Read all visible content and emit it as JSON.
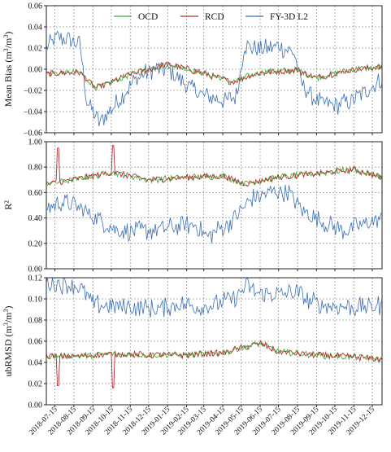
{
  "chart_data": {
    "type": "line",
    "x_ticks": [
      "2018-07-15",
      "2018-08-15",
      "2018-09-15",
      "2018-10-15",
      "2018-11-15",
      "2018-12-15",
      "2019-01-15",
      "2019-02-15",
      "2019-03-15",
      "2019-04-15",
      "2019-05-15",
      "2019-06-15",
      "2019-07-15",
      "2019-08-15",
      "2019-09-15",
      "2019-10-15",
      "2019-11-15",
      "2019-12-15"
    ],
    "xlim": [
      "2018-07-01",
      "2019-12-31"
    ],
    "legend": {
      "placement": "top-center",
      "entries": [
        "OCD",
        "RCD",
        "FY-3D L2"
      ]
    },
    "colors": {
      "OCD": "#3cb043",
      "RCD": "#b5302c",
      "FY-3D L2": "#3a6fb5"
    },
    "grid": true,
    "panels": [
      {
        "ylabel_main": "Mean Bias (m",
        "ylabel_sup": "3",
        "ylabel_mid": "/m",
        "ylabel_sup2": "3",
        "ylabel_end": ")",
        "ylim": [
          -0.06,
          0.06
        ],
        "yticks": [
          "0.06",
          "0.04",
          "0.02",
          "0.00",
          "−0.02",
          "−0.04",
          "−0.06"
        ],
        "series": [
          {
            "name": "OCD",
            "x": [
              "2018-07-01",
              "2018-08-25",
              "2018-09-20",
              "2018-11-15",
              "2019-01-15",
              "2019-03-15",
              "2019-05-01",
              "2019-06-15",
              "2019-08-15",
              "2019-09-15",
              "2019-11-15",
              "2019-12-31"
            ],
            "values": [
              -0.004,
              -0.003,
              -0.018,
              -0.005,
              0.005,
              -0.004,
              -0.012,
              -0.003,
              -0.001,
              -0.008,
              0.0,
              0.002
            ]
          },
          {
            "name": "RCD",
            "x": [
              "2018-07-01",
              "2018-08-25",
              "2018-09-20",
              "2018-11-15",
              "2019-01-15",
              "2019-03-15",
              "2019-05-01",
              "2019-06-15",
              "2019-08-15",
              "2019-09-15",
              "2019-11-15",
              "2019-12-31"
            ],
            "values": [
              -0.004,
              -0.003,
              -0.018,
              -0.005,
              0.005,
              -0.004,
              -0.012,
              -0.003,
              -0.001,
              -0.008,
              0.0,
              0.002
            ]
          },
          {
            "name": "FY-3D L2",
            "x": [
              "2018-07-01",
              "2018-07-20",
              "2018-08-25",
              "2018-09-05",
              "2018-09-25",
              "2018-10-20",
              "2018-11-20",
              "2018-12-20",
              "2019-01-15",
              "2019-02-15",
              "2019-03-15",
              "2019-04-20",
              "2019-05-08",
              "2019-05-20",
              "2019-06-15",
              "2019-07-15",
              "2019-08-10",
              "2019-08-20",
              "2019-09-15",
              "2019-10-15",
              "2019-11-15",
              "2019-12-31"
            ],
            "values": [
              0.02,
              0.03,
              0.024,
              -0.03,
              -0.05,
              -0.035,
              -0.012,
              0.0,
              0.0,
              -0.015,
              -0.025,
              -0.03,
              -0.025,
              0.022,
              0.018,
              0.022,
              0.015,
              -0.012,
              -0.03,
              -0.035,
              -0.028,
              -0.01
            ]
          }
        ]
      },
      {
        "ylabel_main": "R²",
        "ylim": [
          0.0,
          1.0
        ],
        "yticks": [
          "1.00",
          "0.80",
          "0.60",
          "0.40",
          "0.20",
          "0.00"
        ],
        "series": [
          {
            "name": "OCD",
            "x": [
              "2018-07-01",
              "2018-08-15",
              "2018-10-15",
              "2018-12-15",
              "2019-02-15",
              "2019-04-15",
              "2019-05-20",
              "2019-07-15",
              "2019-09-15",
              "2019-11-15",
              "2019-12-31"
            ],
            "values": [
              0.67,
              0.7,
              0.76,
              0.7,
              0.72,
              0.73,
              0.67,
              0.72,
              0.75,
              0.78,
              0.72
            ]
          },
          {
            "name": "RCD",
            "x": [
              "2018-07-01",
              "2018-08-15",
              "2018-10-15",
              "2018-12-15",
              "2019-02-15",
              "2019-04-15",
              "2019-05-20",
              "2019-07-15",
              "2019-09-15",
              "2019-11-15",
              "2019-12-31"
            ],
            "values": [
              0.67,
              0.7,
              0.76,
              0.7,
              0.72,
              0.73,
              0.67,
              0.72,
              0.75,
              0.78,
              0.72
            ]
          },
          {
            "name": "FY-3D L2",
            "x": [
              "2018-07-01",
              "2018-08-01",
              "2018-09-15",
              "2018-10-25",
              "2018-12-15",
              "2019-01-15",
              "2019-03-01",
              "2019-03-20",
              "2019-05-01",
              "2019-06-01",
              "2019-07-10",
              "2019-08-01",
              "2019-08-25",
              "2019-10-01",
              "2019-11-01",
              "2019-12-31"
            ],
            "values": [
              0.48,
              0.53,
              0.42,
              0.3,
              0.3,
              0.32,
              0.35,
              0.25,
              0.38,
              0.55,
              0.62,
              0.6,
              0.45,
              0.35,
              0.3,
              0.4
            ]
          }
        ]
      },
      {
        "ylabel_main": "ubRMSD (m",
        "ylabel_sup": "3",
        "ylabel_mid": "/m",
        "ylabel_sup2": "3",
        "ylabel_end": ")",
        "ylim": [
          0.0,
          0.12
        ],
        "yticks": [
          "0.12",
          "0.10",
          "0.08",
          "0.06",
          "0.04",
          "0.02",
          "0.00"
        ],
        "series": [
          {
            "name": "OCD",
            "x": [
              "2018-07-01",
              "2018-08-25",
              "2018-10-15",
              "2018-12-15",
              "2019-02-15",
              "2019-04-15",
              "2019-05-25",
              "2019-06-15",
              "2019-07-15",
              "2019-09-15",
              "2019-11-15",
              "2019-12-31"
            ],
            "values": [
              0.046,
              0.046,
              0.048,
              0.047,
              0.047,
              0.049,
              0.055,
              0.058,
              0.05,
              0.047,
              0.045,
              0.043
            ]
          },
          {
            "name": "RCD",
            "x": [
              "2018-07-01",
              "2018-08-25",
              "2018-10-15",
              "2018-12-15",
              "2019-02-15",
              "2019-04-15",
              "2019-05-25",
              "2019-06-15",
              "2019-07-15",
              "2019-09-15",
              "2019-11-15",
              "2019-12-31"
            ],
            "values": [
              0.046,
              0.046,
              0.048,
              0.047,
              0.047,
              0.049,
              0.055,
              0.058,
              0.05,
              0.047,
              0.045,
              0.043
            ]
          },
          {
            "name": "FY-3D L2",
            "x": [
              "2018-07-01",
              "2018-08-15",
              "2018-08-30",
              "2018-09-15",
              "2018-10-15",
              "2018-11-15",
              "2018-12-25",
              "2019-02-01",
              "2019-03-15",
              "2019-05-01",
              "2019-05-25",
              "2019-06-10",
              "2019-07-15",
              "2019-08-15",
              "2019-09-01",
              "2019-10-01",
              "2019-11-15",
              "2019-12-31"
            ],
            "values": [
              0.116,
              0.113,
              0.108,
              0.095,
              0.093,
              0.092,
              0.09,
              0.095,
              0.092,
              0.1,
              0.112,
              0.105,
              0.104,
              0.106,
              0.098,
              0.094,
              0.092,
              0.094
            ]
          }
        ]
      }
    ],
    "spikes": [
      {
        "panel": 1,
        "series": "RCD",
        "x": "2018-07-20",
        "value": 0.95
      },
      {
        "panel": 1,
        "series": "RCD",
        "x": "2018-10-18",
        "value": 0.97
      },
      {
        "panel": 2,
        "series": "RCD",
        "x": "2018-07-20",
        "value": 0.018
      },
      {
        "panel": 2,
        "series": "RCD",
        "x": "2018-10-18",
        "value": 0.016
      }
    ]
  }
}
